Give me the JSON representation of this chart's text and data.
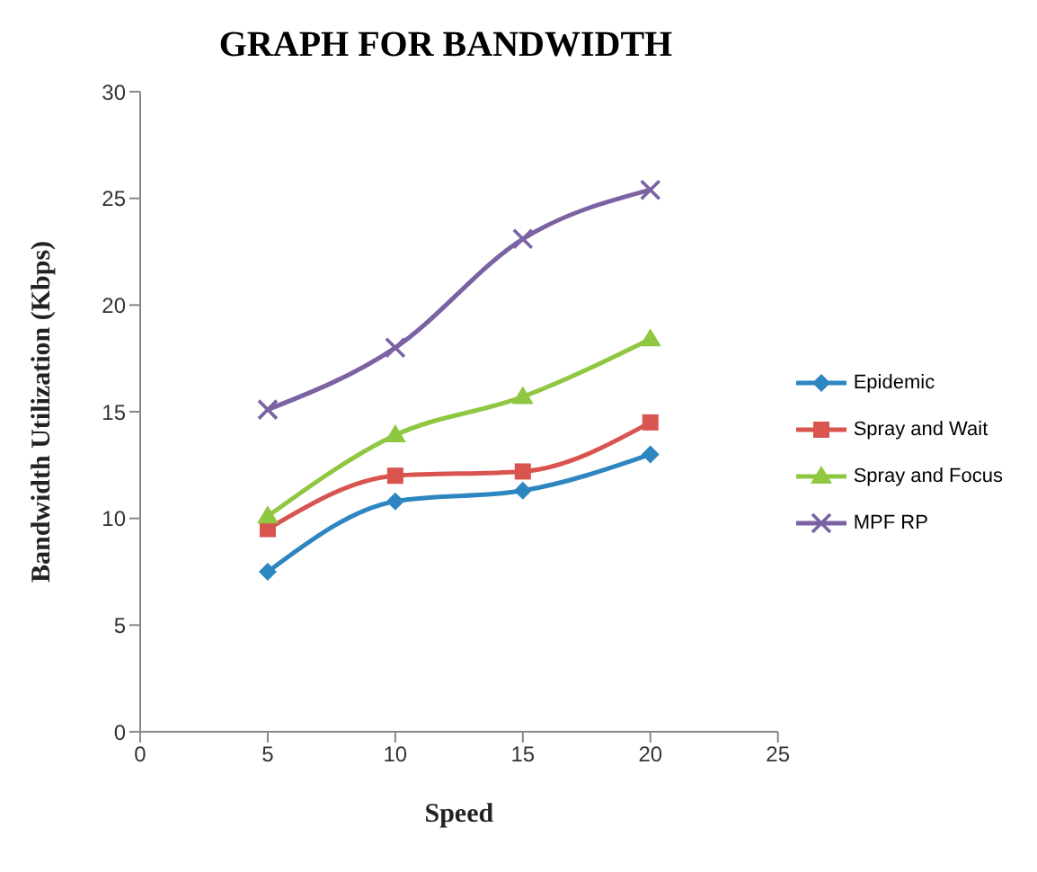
{
  "chart_data": {
    "type": "line",
    "title": "GRAPH FOR BANDWIDTH",
    "xlabel": "Speed",
    "ylabel": "Bandwidth Utilization (Kbps)",
    "x": [
      5,
      10,
      15,
      20
    ],
    "xlim": [
      0,
      25
    ],
    "xticks": [
      0,
      5,
      10,
      15,
      20,
      25
    ],
    "ylim": [
      0,
      30
    ],
    "yticks": [
      0,
      5,
      10,
      15,
      20,
      25,
      30
    ],
    "grid": false,
    "legend": "right",
    "series": [
      {
        "name": "Epidemic",
        "color": "#2e86c1",
        "marker": "diamond",
        "values": [
          7.5,
          10.8,
          11.3,
          13.0
        ]
      },
      {
        "name": "Spray and Wait",
        "color": "#d9534f",
        "marker": "square",
        "values": [
          9.5,
          12.0,
          12.2,
          14.5
        ]
      },
      {
        "name": "Spray and Focus",
        "color": "#8fc740",
        "marker": "triangle",
        "values": [
          10.1,
          13.9,
          15.7,
          18.4
        ]
      },
      {
        "name": "MPF RP",
        "color": "#7a62a3",
        "marker": "cross",
        "values": [
          15.1,
          18.0,
          23.1,
          25.4
        ]
      }
    ]
  }
}
